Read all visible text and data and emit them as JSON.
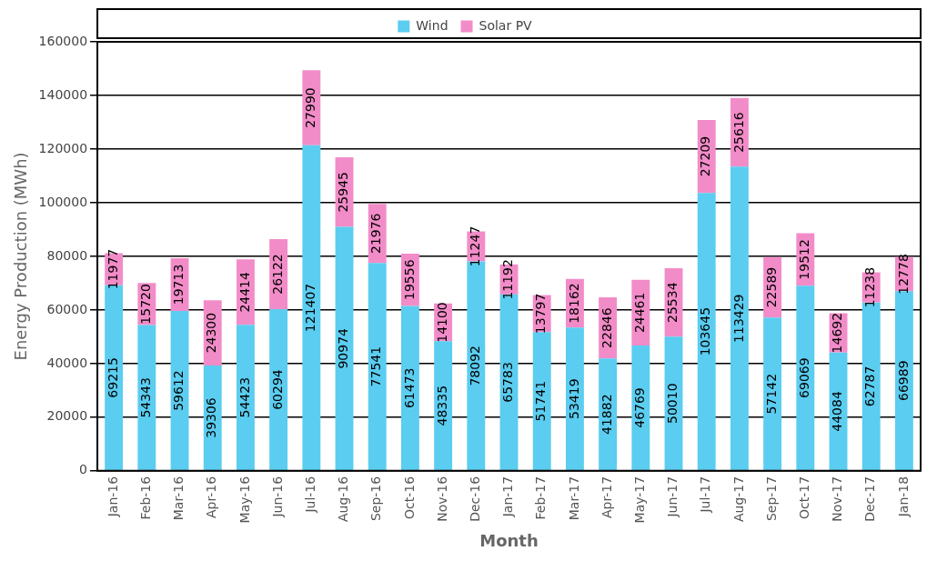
{
  "chart_data": {
    "type": "bar",
    "stacked": true,
    "xlabel": "Month",
    "ylabel": "Energy Production (MWh)",
    "categories": [
      "Jan-16",
      "Feb-16",
      "Mar-16",
      "Apr-16",
      "May-16",
      "Jun-16",
      "Jul-16",
      "Aug-16",
      "Sep-16",
      "Oct-16",
      "Nov-16",
      "Dec-16",
      "Jan-17",
      "Feb-17",
      "Mar-17",
      "Apr-17",
      "May-17",
      "Jun-17",
      "Jul-17",
      "Aug-17",
      "Sep-17",
      "Oct-17",
      "Nov-17",
      "Dec-17",
      "Jan-18"
    ],
    "series": [
      {
        "name": "Wind",
        "color": "#5bcdf0",
        "values": [
          69215,
          54343,
          59612,
          39306,
          54423,
          60294,
          121407,
          90974,
          77541,
          61473,
          48335,
          78092,
          65783,
          51741,
          53419,
          41882,
          46769,
          50010,
          103645,
          113429,
          57142,
          69069,
          44084,
          62787,
          66989
        ]
      },
      {
        "name": "Solar PV",
        "color": "#f28cc8",
        "values": [
          11977,
          15720,
          19713,
          24300,
          24414,
          26122,
          27990,
          25945,
          21976,
          19556,
          14100,
          11247,
          11192,
          13797,
          18162,
          22846,
          24461,
          25534,
          27209,
          25616,
          22589,
          19512,
          14692,
          11238,
          12778
        ]
      }
    ],
    "ylim": [
      0,
      160000
    ],
    "yticks": [
      0,
      20000,
      40000,
      60000,
      80000,
      100000,
      120000,
      140000,
      160000
    ],
    "grid": "y",
    "legend": "top",
    "data_labels": true
  }
}
